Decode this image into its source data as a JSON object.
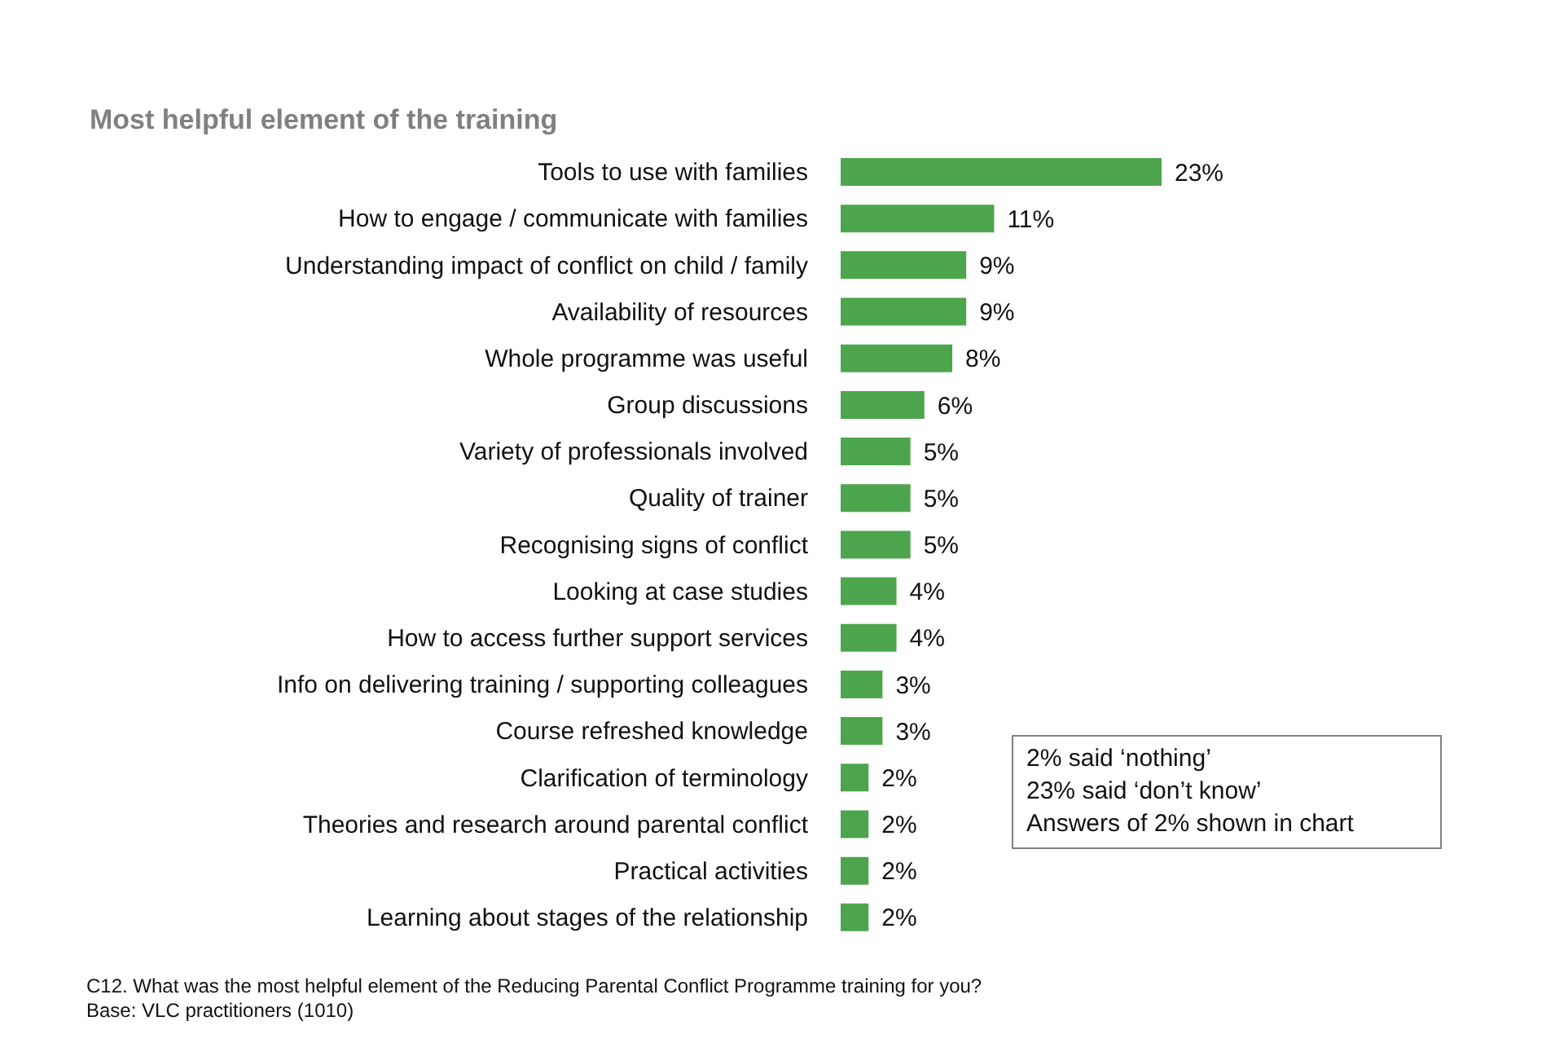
{
  "chart_data": {
    "type": "bar",
    "orientation": "horizontal",
    "title": "Most helpful element of the training",
    "categories": [
      "Tools to use with families",
      "How to engage / communicate with families",
      "Understanding impact of conflict on child / family",
      "Availability of resources",
      "Whole programme was useful",
      "Group discussions",
      "Variety of professionals involved",
      "Quality of trainer",
      "Recognising signs of conflict",
      "Looking at case studies",
      "How to access further support services",
      "Info on delivering training / supporting colleagues",
      "Course refreshed knowledge",
      "Clarification of terminology",
      "Theories and research around parental conflict",
      "Practical activities",
      "Learning about stages of the relationship"
    ],
    "values": [
      23,
      11,
      9,
      9,
      8,
      6,
      5,
      5,
      5,
      4,
      4,
      3,
      3,
      2,
      2,
      2,
      2
    ],
    "value_labels": [
      "23%",
      "11%",
      "9%",
      "9%",
      "8%",
      "6%",
      "5%",
      "5%",
      "5%",
      "4%",
      "4%",
      "3%",
      "3%",
      "2%",
      "2%",
      "2%",
      "2%"
    ],
    "color": "#4ca54c",
    "annotations": [
      "2% said ‘nothing’",
      "23% said ‘don’t know’",
      "Answers of 2% shown in chart",
      "C12. What was the most helpful element of the Reducing Parental Conflict Programme training for you?",
      "Base: VLC practitioners (1010)"
    ],
    "grid": false,
    "legend": false
  }
}
